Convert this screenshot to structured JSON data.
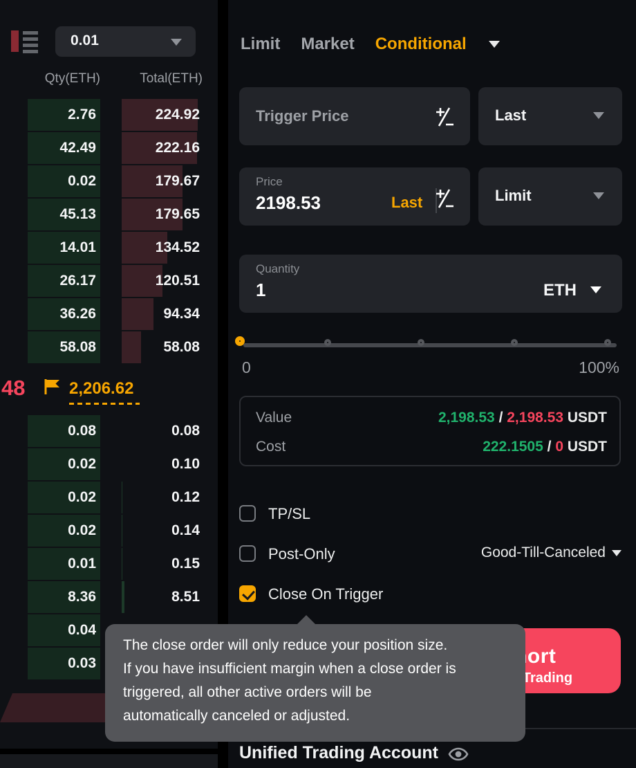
{
  "orderbook": {
    "depth_select": "0.01",
    "headers": {
      "qty": "Qty(ETH)",
      "total": "Total(ETH)"
    },
    "asks": [
      {
        "qty": "2.76",
        "total": "224.92"
      },
      {
        "qty": "42.49",
        "total": "222.16"
      },
      {
        "qty": "0.02",
        "total": "179.67"
      },
      {
        "qty": "45.13",
        "total": "179.65"
      },
      {
        "qty": "14.01",
        "total": "134.52"
      },
      {
        "qty": "26.17",
        "total": "120.51"
      },
      {
        "qty": "36.26",
        "total": "94.34"
      },
      {
        "qty": "58.08",
        "total": "58.08"
      }
    ],
    "last_price_fragment": "48",
    "mark_price": "2,206.62",
    "bids": [
      {
        "qty": "0.08",
        "total": "0.08"
      },
      {
        "qty": "0.02",
        "total": "0.10"
      },
      {
        "qty": "0.02",
        "total": "0.12"
      },
      {
        "qty": "0.02",
        "total": "0.14"
      },
      {
        "qty": "0.01",
        "total": "0.15"
      },
      {
        "qty": "8.36",
        "total": "8.51"
      },
      {
        "qty": "0.04",
        "total": ""
      },
      {
        "qty": "0.03",
        "total": ""
      }
    ]
  },
  "order_form": {
    "tabs": [
      "Limit",
      "Market",
      "Conditional"
    ],
    "active_tab": "Conditional",
    "trigger_price_placeholder": "Trigger Price",
    "trigger_type": "Last",
    "price_label": "Price",
    "price_value": "2198.53",
    "price_tag": "Last",
    "order_price_type": "Limit",
    "quantity_label": "Quantity",
    "quantity_value": "1",
    "quantity_unit": "ETH",
    "slider": {
      "min_label": "0",
      "max_label": "100%",
      "value_pct": 0
    },
    "summary": {
      "value_label": "Value",
      "value_green": "2,198.53",
      "value_sep": " / ",
      "value_red": "2,198.53",
      "value_unit": " USDT",
      "cost_label": "Cost",
      "cost_green": "222.1505",
      "cost_sep": " / ",
      "cost_red": "0",
      "cost_unit": " USDT"
    },
    "tp_sl": {
      "label": "TP/SL",
      "checked": false
    },
    "post_only": {
      "label": "Post-Only",
      "checked": false
    },
    "time_in_force": "Good-Till-Canceled",
    "close_on_trigger": {
      "label": "Close On Trigger",
      "checked": true
    },
    "tooltip": "The close order will only reduce your position size.\nIf you have insufficient margin when a close order is\ntriggered, all other active orders will be\nautomatically canceled or adjusted.",
    "short_button": {
      "label": "Short",
      "sub_label": "Trading"
    },
    "account_title": "Unified Trading Account"
  },
  "colors": {
    "accent_orange": "#f7a600",
    "green": "#20b26c",
    "red": "#f6455d",
    "ask_bar": "#3a2026",
    "bid_cell": "#14291e",
    "input_bg": "#222429",
    "tooltip_bg": "#545559"
  }
}
